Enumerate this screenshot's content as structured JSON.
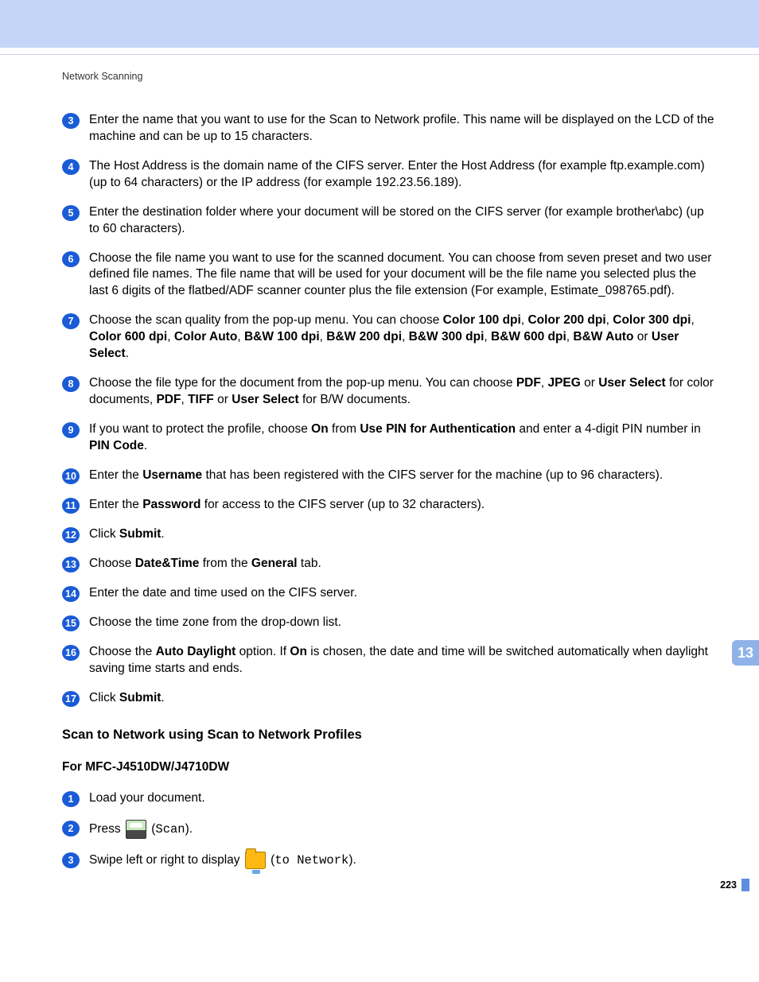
{
  "header": {
    "section_label": "Network Scanning"
  },
  "chapter_tab": "13",
  "page_number": "223",
  "steps_a": [
    {
      "n": "3",
      "html": "Enter the name that you want to use for the Scan to Network profile. This name will be displayed on the LCD of the machine and can be up to 15 characters."
    },
    {
      "n": "4",
      "html": "The Host Address is the domain name of the CIFS server. Enter the Host Address (for example ftp.example.com) (up to 64 characters) or the IP address (for example 192.23.56.189)."
    },
    {
      "n": "5",
      "html": "Enter the destination folder where your document will be stored on the CIFS server (for example brother\\abc) (up to 60 characters)."
    },
    {
      "n": "6",
      "html": "Choose the file name you want to use for the scanned document. You can choose from seven preset and two user defined file names. The file name that will be used for your document will be the file name you selected plus the last 6 digits of the flatbed/ADF scanner counter plus the file extension (For example, Estimate_098765.pdf)."
    },
    {
      "n": "7",
      "html": "Choose the scan quality from the pop-up menu. You can choose <span class=\"b\">Color 100 dpi</span>, <span class=\"b\">Color 200 dpi</span>, <span class=\"b\">Color 300 dpi</span>, <span class=\"b\">Color 600 dpi</span>, <span class=\"b\">Color Auto</span>, <span class=\"b\">B&amp;W 100 dpi</span>, <span class=\"b\">B&amp;W 200 dpi</span>, <span class=\"b\">B&amp;W 300 dpi</span>, <span class=\"b\">B&amp;W 600 dpi</span>, <span class=\"b\">B&amp;W Auto</span> or <span class=\"b\">User Select</span>."
    },
    {
      "n": "8",
      "html": "Choose the file type for the document from the pop-up menu. You can choose <span class=\"b\">PDF</span>, <span class=\"b\">JPEG</span> or <span class=\"b\">User Select</span> for color documents, <span class=\"b\">PDF</span>, <span class=\"b\">TIFF</span> or <span class=\"b\">User Select</span> for B/W documents."
    },
    {
      "n": "9",
      "html": "If you want to protect the profile, choose <span class=\"b\">On</span> from <span class=\"b\">Use PIN for Authentication</span> and enter a 4-digit PIN number in <span class=\"b\">PIN Code</span>."
    },
    {
      "n": "10",
      "html": "Enter the <span class=\"b\">Username</span> that has been registered with the CIFS server for the machine (up to 96 characters)."
    },
    {
      "n": "11",
      "html": "Enter the <span class=\"b\">Password</span> for access to the CIFS server (up to 32 characters)."
    },
    {
      "n": "12",
      "html": "Click <span class=\"b\">Submit</span>."
    },
    {
      "n": "13",
      "html": "Choose <span class=\"b\">Date&amp;Time</span> from the <span class=\"b\">General</span> tab."
    },
    {
      "n": "14",
      "html": "Enter the date and time used on the CIFS server."
    },
    {
      "n": "15",
      "html": "Choose the time zone from the drop-down list."
    },
    {
      "n": "16",
      "html": "Choose the <span class=\"b\">Auto Daylight</span> option. If <span class=\"b\">On</span> is chosen, the date and time will be switched automatically when daylight saving time starts and ends."
    },
    {
      "n": "17",
      "html": "Click <span class=\"b\">Submit</span>."
    }
  ],
  "subheading1": "Scan to Network using Scan to Network Profiles",
  "subheading2": "For MFC-J4510DW/J4710DW",
  "steps_b": [
    {
      "n": "1",
      "html": "Load your document."
    },
    {
      "n": "2",
      "html": "Press <span class=\"inline-icon scan-icon\" data-name=\"scan-icon\" data-interactable=\"false\"></span> (<span class=\"mono\">Scan</span>)."
    },
    {
      "n": "3",
      "html": "Swipe left or right to display <span class=\"inline-icon folder-icon\" data-name=\"folder-network-icon\" data-interactable=\"false\"></span> (<span class=\"mono\">to Network</span>)."
    }
  ],
  "colors": {
    "top_bar": "#c5d5f7",
    "step_circle": "#1a5bd6",
    "chapter_tab": "#8fb2e8",
    "page_accent": "#5e8ee0"
  }
}
